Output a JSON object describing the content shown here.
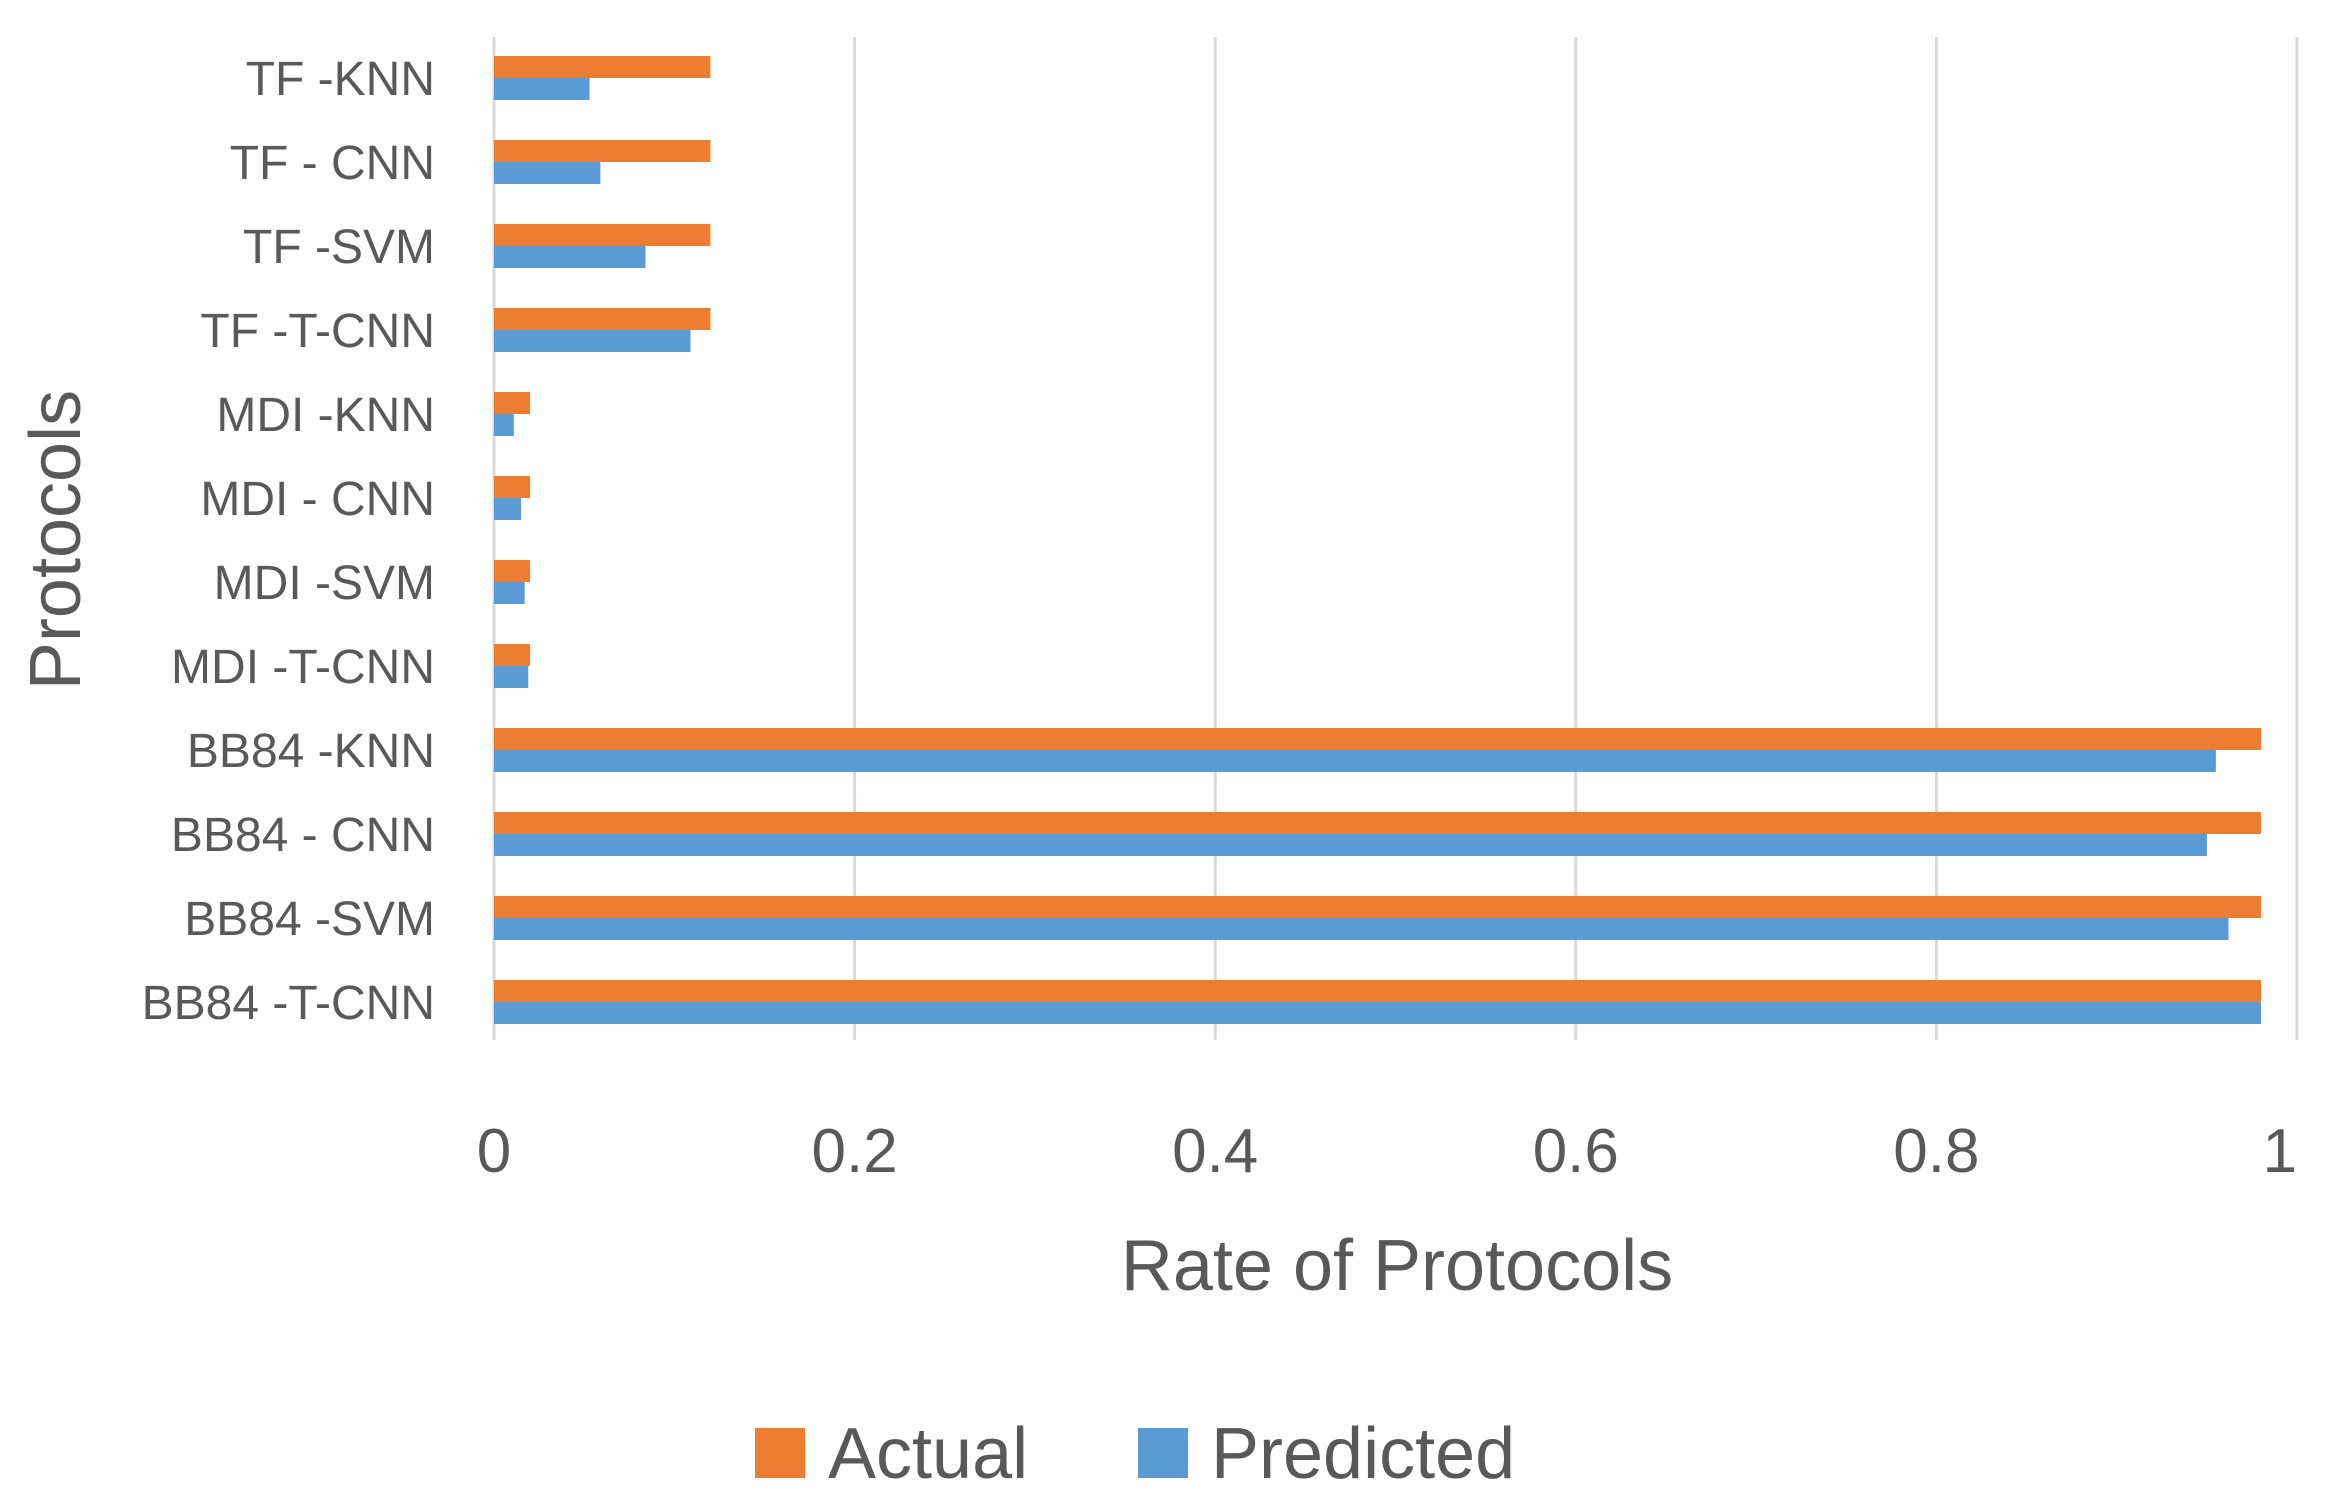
{
  "chart_data": {
    "type": "bar",
    "orientation": "horizontal",
    "categories": [
      "TF -KNN",
      "TF - CNN",
      "TF -SVM",
      "TF -T-CNN",
      "MDI -KNN",
      "MDI - CNN",
      "MDI -SVM",
      "MDI -T-CNN",
      "BB84 -KNN",
      "BB84 - CNN",
      "BB84 -SVM",
      "BB84 -T-CNN"
    ],
    "series": [
      {
        "name": "Actual",
        "color": "#ED7D31",
        "values": [
          0.12,
          0.12,
          0.12,
          0.12,
          0.02,
          0.02,
          0.02,
          0.02,
          0.98,
          0.98,
          0.98,
          0.98
        ]
      },
      {
        "name": "Predicted",
        "color": "#5B9BD5",
        "values": [
          0.053,
          0.059,
          0.084,
          0.109,
          0.011,
          0.015,
          0.017,
          0.019,
          0.955,
          0.95,
          0.962,
          0.98
        ]
      }
    ],
    "xlabel": "Rate of Protocols",
    "ylabel": "Protocols",
    "xlim": [
      0,
      1
    ],
    "xticks": [
      "0",
      "0.2",
      "0.4",
      "0.6",
      "0.8",
      "1"
    ],
    "grid": true,
    "legend_position": "bottom"
  }
}
